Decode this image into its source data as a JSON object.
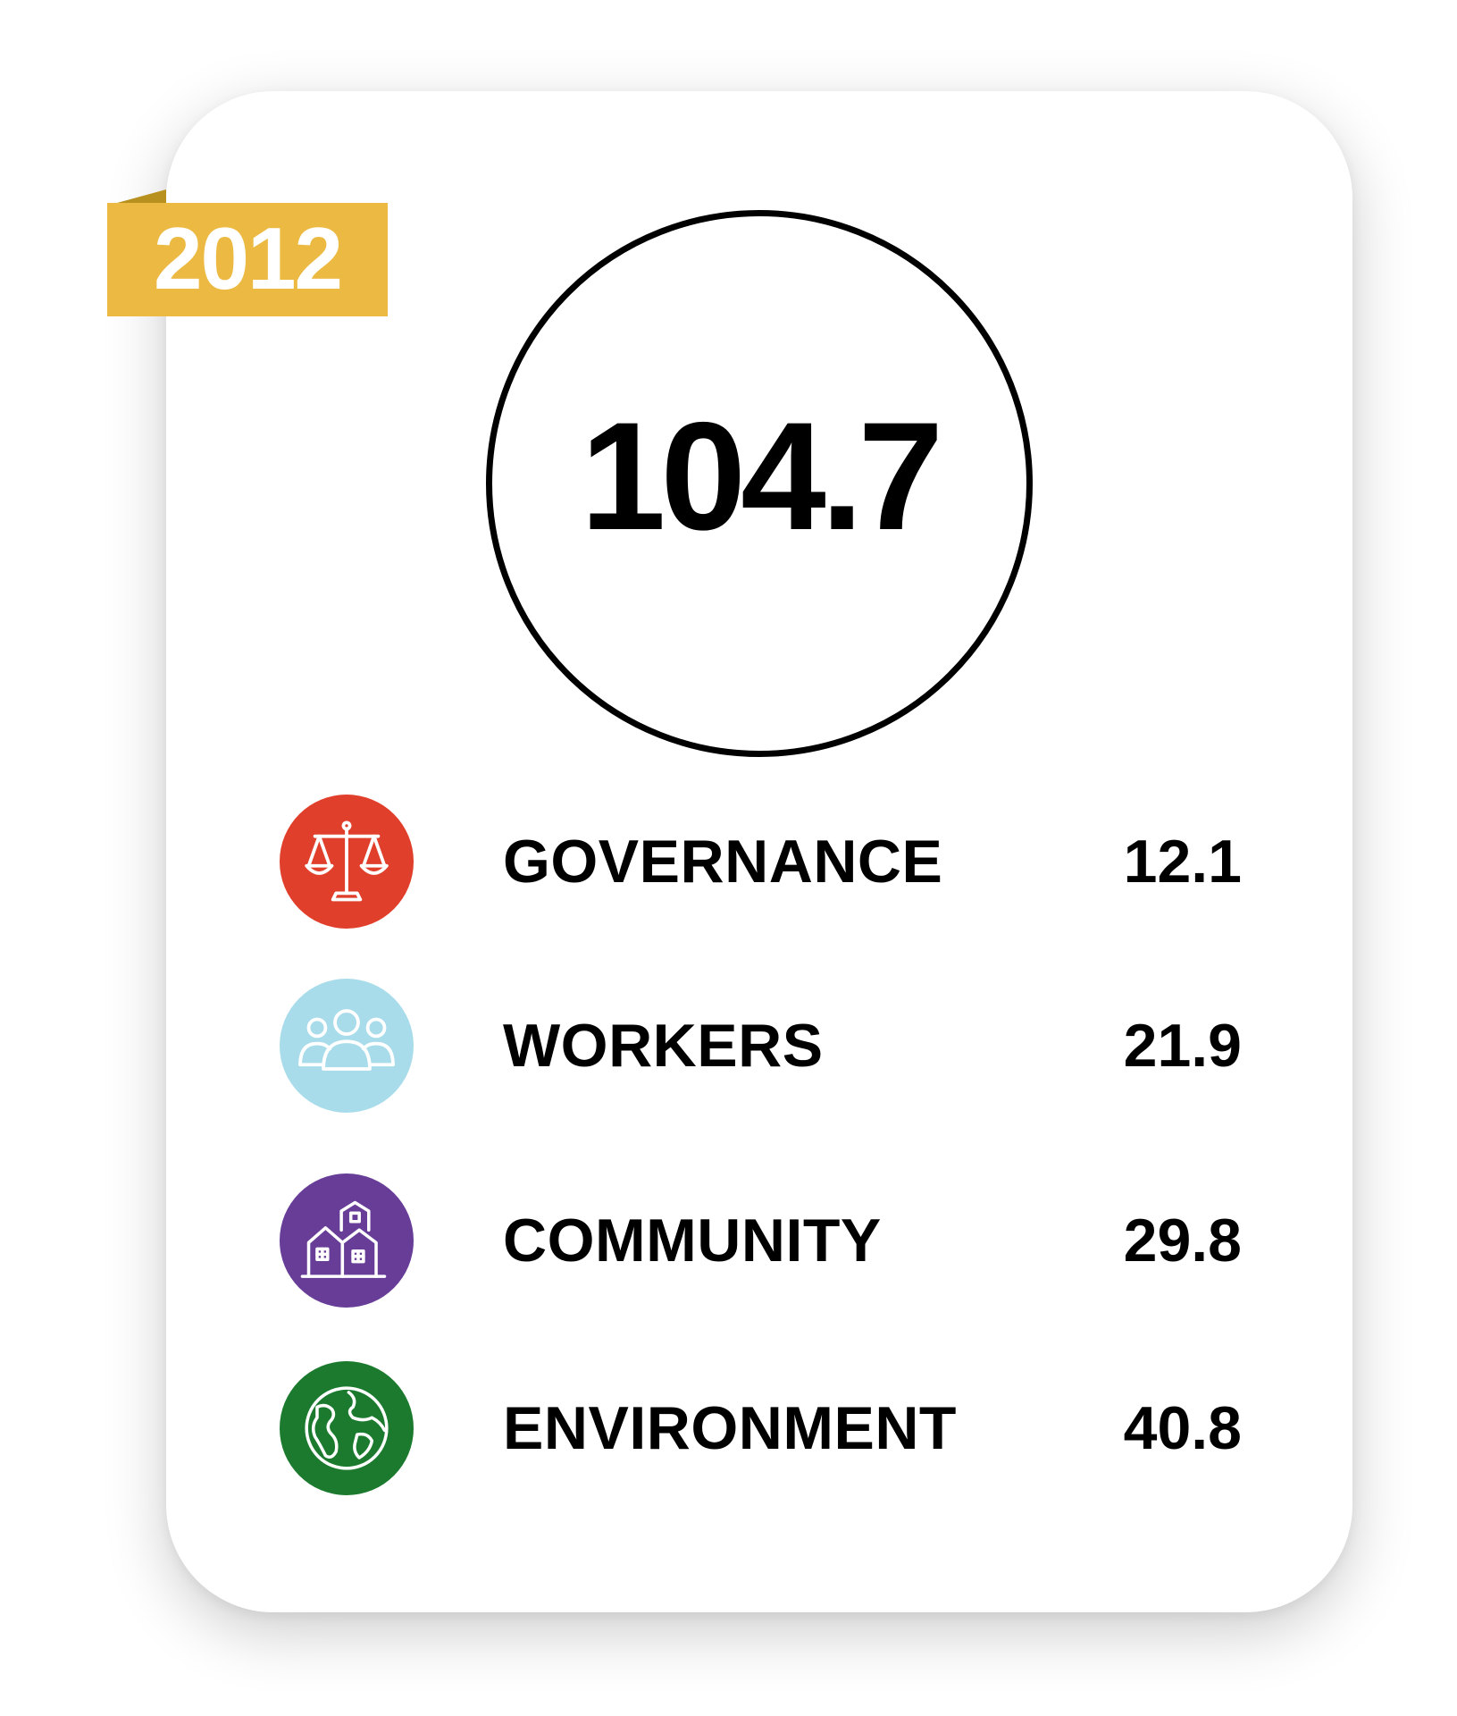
{
  "year": "2012",
  "total_score": "104.7",
  "categories": [
    {
      "label": "GOVERNANCE",
      "value": "12.1",
      "icon": "scales-of-justice-icon",
      "color": "#df3f2b"
    },
    {
      "label": "WORKERS",
      "value": "21.9",
      "icon": "people-group-icon",
      "color": "#a9dceb"
    },
    {
      "label": "COMMUNITY",
      "value": "29.8",
      "icon": "buildings-icon",
      "color": "#673d97"
    },
    {
      "label": "ENVIRONMENT",
      "value": "40.8",
      "icon": "globe-icon",
      "color": "#1b7a2e"
    }
  ],
  "colors": {
    "ribbon": "#ecba43",
    "ribbon_fold": "#b8901e",
    "text": "#000000",
    "card": "#ffffff"
  }
}
